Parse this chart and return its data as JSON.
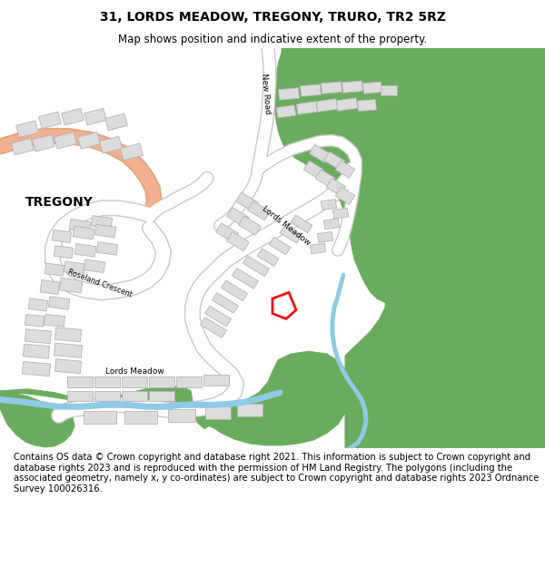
{
  "title": "31, LORDS MEADOW, TREGONY, TRURO, TR2 5RZ",
  "subtitle": "Map shows position and indicative extent of the property.",
  "footer": "Contains OS data © Crown copyright and database right 2021. This information is subject to Crown copyright and database rights 2023 and is reproduced with the permission of HM Land Registry. The polygons (including the associated geometry, namely x, y co-ordinates) are subject to Crown copyright and database rights 2023 Ordnance Survey 100026316.",
  "map_bg": "#f5f4f0",
  "road_color": "#ffffff",
  "road_outline": "#c8c8c8",
  "building_color": "#dcdcdc",
  "building_outline": "#b4b4b4",
  "green_color": "#6aac5e",
  "river_color": "#8ecae6",
  "salmon_road": "#f2b090",
  "property_outline": "#ee1111",
  "property_fill": "none",
  "figsize": [
    6.0,
    6.25
  ],
  "dpi": 100,
  "title_fontsize": 10,
  "subtitle_fontsize": 8.5,
  "footer_fontsize": 7.2,
  "tregony_fontsize": 10,
  "road_label_fontsize": 6.5
}
